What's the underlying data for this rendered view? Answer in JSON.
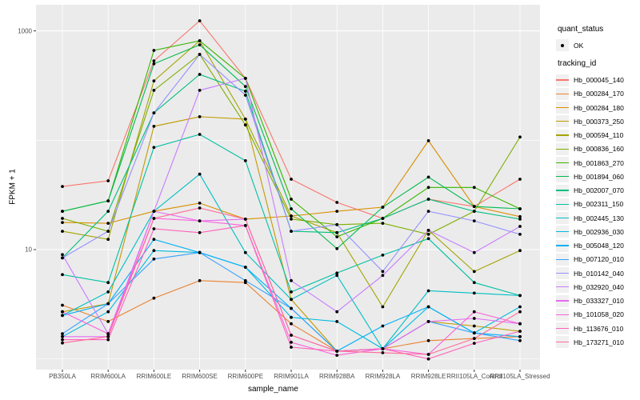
{
  "chart_data": {
    "type": "line",
    "title": "",
    "xlabel": "sample_name",
    "ylabel": "FPKM + 1",
    "y_scale": "log10",
    "y_axis_ticks": [
      "10",
      "1000"
    ],
    "y_tick_values": [
      10,
      1000
    ],
    "y_minor_gridline_values": [
      1,
      100
    ],
    "ylim": [
      0.93,
      1500
    ],
    "grid": "on",
    "legend_position": "right",
    "categories": [
      "PB350LA",
      "RRIM600LA",
      "RRIM600LE",
      "RRIM600SE",
      "RRIM600PE",
      "RRIM901LA",
      "RRIM928BA",
      "RRIM928LA",
      "RRIM928LE",
      "RRII105LA_Control",
      "RRII105LA_Stressed"
    ],
    "series": [
      {
        "name": "Hb_000045_140",
        "color": "#F8766D",
        "values": [
          37.8,
          42.6,
          532,
          1236,
          368,
          44,
          27,
          19.3,
          28.9,
          24.8,
          44
        ]
      },
      {
        "name": "Hb_000284_170",
        "color": "#EA8331",
        "values": [
          3.1,
          2.2,
          3.6,
          5.2,
          5.0,
          2.1,
          1.18,
          1.24,
          1.47,
          1.54,
          1.6
        ]
      },
      {
        "name": "Hb_000284_180",
        "color": "#D89000",
        "values": [
          17.7,
          17.4,
          22.4,
          26.6,
          19.0,
          20.3,
          22.4,
          24.4,
          99,
          24.8,
          20.0
        ]
      },
      {
        "name": "Hb_000373_250",
        "color": "#C09B00",
        "values": [
          2.7,
          3.2,
          134,
          164,
          156,
          3.5,
          1.18,
          1.24,
          2.2,
          2.0,
          1.79
        ]
      },
      {
        "name": "Hb_000594_110",
        "color": "#A3A500",
        "values": [
          14.7,
          12.4,
          349,
          811,
          156,
          20.3,
          14.3,
          3.0,
          15.0,
          6.3,
          9.8
        ]
      },
      {
        "name": "Hb_000836_160",
        "color": "#7CAE00",
        "values": [
          19.3,
          14.7,
          286,
          609,
          138,
          19.0,
          16.9,
          17.4,
          13.8,
          22.4,
          107
        ]
      },
      {
        "name": "Hb_001863_270",
        "color": "#39B600",
        "values": [
          22.4,
          27.9,
          663,
          811,
          368,
          28.9,
          13.1,
          19.3,
          37,
          37,
          23.6
        ]
      },
      {
        "name": "Hb_001894_060",
        "color": "#00BB4E",
        "values": [
          22.4,
          27.9,
          500,
          746,
          310,
          23.6,
          10.2,
          24.4,
          46,
          24.8,
          23.6
        ]
      },
      {
        "name": "Hb_002007_070",
        "color": "#00BF7D",
        "values": [
          8.4,
          22.4,
          178,
          400,
          281,
          14.7,
          14.3,
          19.3,
          28.9,
          22.4,
          19.0
        ]
      },
      {
        "name": "Hb_002311_150",
        "color": "#00C1A3",
        "values": [
          5.9,
          5.0,
          86,
          113,
          65,
          4.1,
          6.1,
          8.9,
          12.6,
          5.0,
          3.8
        ]
      },
      {
        "name": "Hb_002445_130",
        "color": "#00BFC4",
        "values": [
          2.5,
          4.1,
          22.4,
          49,
          9.4,
          3.5,
          5.8,
          1.24,
          4.2,
          4.0,
          3.8
        ]
      },
      {
        "name": "Hb_002936_030",
        "color": "#00BAE0",
        "values": [
          1.6,
          2.7,
          9.8,
          9.4,
          6.9,
          2.4,
          2.2,
          1.24,
          3.0,
          1.73,
          3.0
        ]
      },
      {
        "name": "Hb_005048_120",
        "color": "#00B0F6",
        "values": [
          2.5,
          3.2,
          12.4,
          9.4,
          6.9,
          2.9,
          1.18,
          2.0,
          3.0,
          1.73,
          1.6
        ]
      },
      {
        "name": "Hb_007120_010",
        "color": "#35A2FF",
        "values": [
          1.7,
          3.2,
          8.2,
          9.4,
          5.2,
          2.9,
          1.18,
          1.24,
          2.2,
          1.73,
          1.47
        ]
      },
      {
        "name": "Hb_010142_040",
        "color": "#9590FF",
        "values": [
          8.4,
          14.7,
          178,
          609,
          258,
          14.7,
          16.9,
          6.3,
          22.4,
          18.3,
          13.8
        ]
      },
      {
        "name": "Hb_032920_040",
        "color": "#C77CFF",
        "values": [
          9.0,
          1.7,
          22.4,
          286,
          368,
          5.2,
          2.7,
          5.8,
          15.0,
          9.4,
          16.3
        ]
      },
      {
        "name": "Hb_033327_010",
        "color": "#E76BF3",
        "values": [
          1.6,
          1.6,
          22.4,
          18.3,
          19.0,
          1.65,
          1.18,
          1.24,
          2.2,
          2.35,
          2.1
        ]
      },
      {
        "name": "Hb_101058_020",
        "color": "#FA62DB",
        "values": [
          2.7,
          1.7,
          19.3,
          18.3,
          16.6,
          1.42,
          1.08,
          1.24,
          1.1,
          2.7,
          2.1
        ]
      },
      {
        "name": "Hb_113676_010",
        "color": "#FF62BC",
        "values": [
          1.5,
          1.5,
          15.5,
          14.3,
          16.6,
          1.28,
          1.18,
          1.24,
          1.0,
          1.39,
          1.79
        ]
      },
      {
        "name": "Hb_173271_010",
        "color": "#FF6A98",
        "values": [
          1.4,
          1.6,
          19.3,
          24,
          19.0,
          1.65,
          1.18,
          1.14,
          1.1,
          1.54,
          2.7
        ]
      }
    ]
  },
  "legend": {
    "quant_status_title": "quant_status",
    "quant_status_items": [
      {
        "label": "OK",
        "marker": "point"
      }
    ],
    "tracking_title": "tracking_id"
  },
  "colors": {
    "panel_bg": "#EBEBEB",
    "gridline": "#FFFFFF",
    "point": "#000000",
    "tick": "#333333",
    "axis_text": "#4D4D4D",
    "legend_key_bg": "#F0F0F0"
  }
}
